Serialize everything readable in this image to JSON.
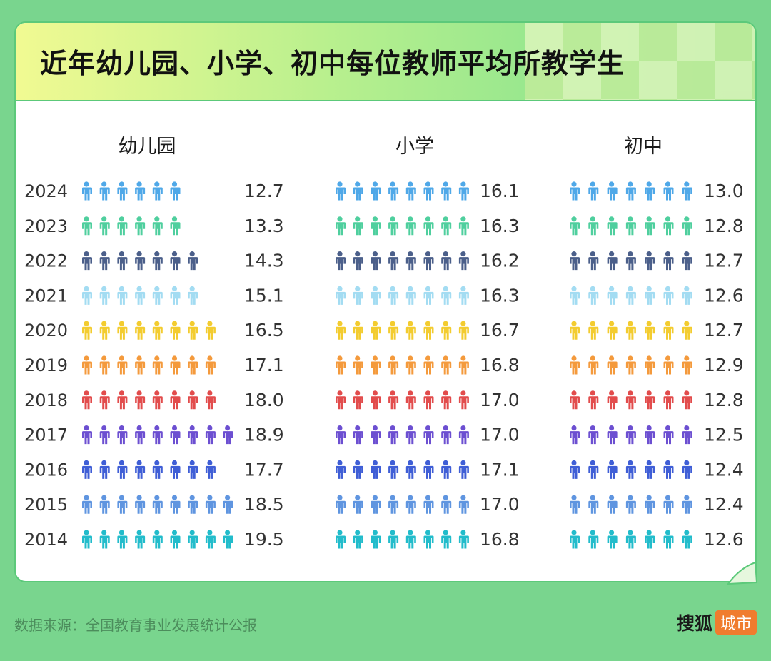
{
  "title": "近年幼儿园、小学、初中每位教师平均所教学生",
  "source": "数据来源：全国教育事业发展统计公报",
  "brand": {
    "name": "搜狐",
    "tag": "城市"
  },
  "colors": {
    "2024": "#4fa8e8",
    "2023": "#4fcf9e",
    "2022": "#4b5f8a",
    "2021": "#a3dcf2",
    "2020": "#f3cc2f",
    "2019": "#f49a3c",
    "2018": "#e24c4c",
    "2017": "#6c4fd1",
    "2016": "#3f5ed6",
    "2015": "#5f95e0",
    "2014": "#22bccb"
  },
  "chart_data": [
    {
      "type": "pictograph",
      "title": "幼儿园",
      "x": [
        "2024",
        "2023",
        "2022",
        "2021",
        "2020",
        "2019",
        "2018",
        "2017",
        "2016",
        "2015",
        "2014"
      ],
      "values": [
        12.7,
        13.3,
        14.3,
        15.1,
        16.5,
        17.1,
        18.0,
        18.9,
        17.7,
        18.5,
        19.5
      ],
      "icons": [
        6,
        6,
        7,
        7,
        8,
        8,
        8,
        9,
        8,
        9,
        9
      ]
    },
    {
      "type": "pictograph",
      "title": "小学",
      "x": [
        "2024",
        "2023",
        "2022",
        "2021",
        "2020",
        "2019",
        "2018",
        "2017",
        "2016",
        "2015",
        "2014"
      ],
      "values": [
        16.1,
        16.3,
        16.2,
        16.3,
        16.7,
        16.8,
        17.0,
        17.0,
        17.1,
        17.0,
        16.8
      ],
      "icons": [
        8,
        8,
        8,
        8,
        8,
        8,
        8,
        8,
        8,
        8,
        8
      ]
    },
    {
      "type": "pictograph",
      "title": "初中",
      "x": [
        "2024",
        "2023",
        "2022",
        "2021",
        "2020",
        "2019",
        "2018",
        "2017",
        "2016",
        "2015",
        "2014"
      ],
      "values": [
        13.0,
        12.8,
        12.7,
        12.6,
        12.7,
        12.9,
        12.8,
        12.5,
        12.4,
        12.4,
        12.6
      ],
      "icons": [
        7,
        7,
        7,
        7,
        7,
        7,
        7,
        7,
        7,
        7,
        7
      ]
    }
  ]
}
